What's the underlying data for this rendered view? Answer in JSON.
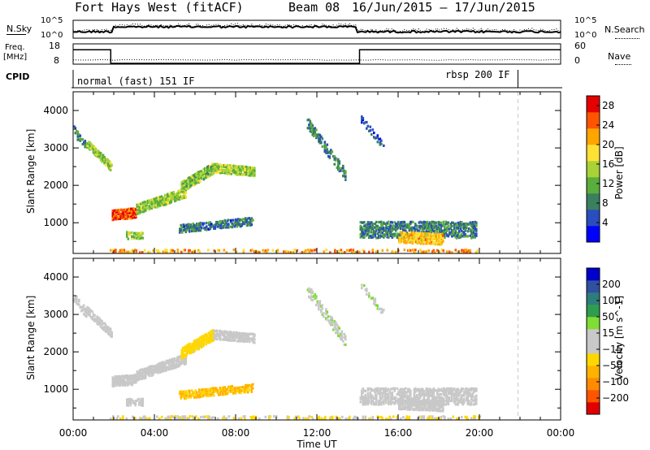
{
  "header": {
    "station": "Fort Hays West (fitACF)",
    "beam": "Beam 08",
    "date_range": "16/Jun/2015 – 17/Jun/2015"
  },
  "noise_panel": {
    "left_label": "N.Sky",
    "left_ticks": [
      "10^5",
      "10^0"
    ],
    "right_label": "N.Search",
    "right_ticks": [
      "10^5",
      "10^0"
    ]
  },
  "freq_panel": {
    "left_label_line1": "Freq.",
    "left_label_line2": "[MHz]",
    "left_ticks": [
      "18",
      "8"
    ],
    "right_label": "Nave",
    "right_ticks": [
      "60",
      "0"
    ],
    "freq_steps": [
      [
        0,
        16.5
      ],
      [
        1.85,
        8.5
      ],
      [
        14.1,
        16.5
      ],
      [
        24,
        16.5
      ]
    ],
    "nave_level": 15
  },
  "cpid": {
    "label": "CPID",
    "modes": [
      {
        "name": "normal (fast) 151 IF",
        "start_hour": 0,
        "end_hour": 21.9
      },
      {
        "name": "rbsp 200 IF",
        "start_hour": 21.9,
        "end_hour": 24
      }
    ]
  },
  "x_axis": {
    "title": "Time UT",
    "ticks": [
      "00:00",
      "04:00",
      "08:00",
      "12:00",
      "16:00",
      "20:00",
      "00:00"
    ]
  },
  "colors": {
    "power_scale": [
      "#0000ff",
      "#2a4dbf",
      "#3a8060",
      "#5aae3c",
      "#a9d236",
      "#ffe034",
      "#ffa500",
      "#ff5500",
      "#e60000"
    ],
    "velocity_scale": [
      "#e00000",
      "#ff5500",
      "#ff8c00",
      "#ffb300",
      "#ffd700",
      "#c8c8c8",
      "#c8c8c8",
      "#80dd33",
      "#2e9e4e",
      "#2e7d7d",
      "#3050a0",
      "#0000cc"
    ],
    "ground_scatter": "#c8c8c8"
  },
  "chart_data": [
    {
      "type": "heatmap",
      "name": "power",
      "ylabel": "Slant Range [km]",
      "xlabel": "",
      "xlim_hours": [
        0,
        24
      ],
      "ylim": [
        180,
        4500
      ],
      "y_ticks": [
        1000,
        2000,
        3000,
        4000
      ],
      "colorbar": {
        "label": "Power [dB]",
        "ticks": [
          4,
          8,
          12,
          16,
          20,
          24,
          28
        ],
        "range": [
          0,
          30
        ]
      },
      "features": [
        {
          "t0": 0.0,
          "t1": 0.65,
          "r0": 3500,
          "r1": 3050,
          "value": 8,
          "width": 250,
          "density": 0.5
        },
        {
          "t0": 0.65,
          "t1": 1.9,
          "r0": 3150,
          "r1": 2500,
          "value": 14,
          "width": 220,
          "density": 0.7
        },
        {
          "t0": 1.9,
          "t1": 3.1,
          "r0": 1250,
          "r1": 1300,
          "value": 26,
          "width": 280,
          "density": 0.9
        },
        {
          "t0": 3.1,
          "t1": 5.5,
          "r0": 1400,
          "r1": 1850,
          "value": 14,
          "width": 280,
          "density": 0.8
        },
        {
          "t0": 5.3,
          "t1": 6.9,
          "r0": 2000,
          "r1": 2500,
          "value": 13,
          "width": 300,
          "density": 0.8
        },
        {
          "t0": 6.9,
          "t1": 8.9,
          "r0": 2500,
          "r1": 2400,
          "value": 14,
          "width": 250,
          "density": 0.75
        },
        {
          "t0": 2.6,
          "t1": 3.4,
          "r0": 700,
          "r1": 700,
          "value": 14,
          "width": 200,
          "density": 0.6
        },
        {
          "t0": 5.2,
          "t1": 8.8,
          "r0": 880,
          "r1": 1080,
          "value": 7,
          "width": 220,
          "density": 0.6
        },
        {
          "t0": 11.5,
          "t1": 13.4,
          "r0": 3700,
          "r1": 2300,
          "value": 9,
          "width": 300,
          "density": 0.45
        },
        {
          "t0": 14.1,
          "t1": 15.3,
          "r0": 3850,
          "r1": 3050,
          "value": 6,
          "width": 200,
          "density": 0.35
        },
        {
          "t0": 14.1,
          "t1": 19.8,
          "r0": 850,
          "r1": 850,
          "value": 8,
          "width": 450,
          "density": 0.55
        },
        {
          "t0": 16.0,
          "t1": 18.2,
          "r0": 650,
          "r1": 600,
          "value": 20,
          "width": 300,
          "density": 0.7
        },
        {
          "t0": 1.8,
          "t1": 20.0,
          "r0": 260,
          "r1": 260,
          "value": 22,
          "width": 140,
          "density": 0.28
        }
      ]
    },
    {
      "type": "heatmap",
      "name": "velocity",
      "ylabel": "Slant Range [km]",
      "xlabel": "Time UT",
      "xlim_hours": [
        0,
        24
      ],
      "ylim": [
        180,
        4500
      ],
      "y_ticks": [
        1000,
        2000,
        3000,
        4000
      ],
      "colorbar": {
        "label": "Velocity [m s^-1]",
        "ticks": [
          200,
          100,
          50,
          15,
          -15,
          -50,
          -100,
          -200
        ],
        "range": [
          -250,
          250
        ]
      },
      "features": [
        {
          "t0": 0.0,
          "t1": 0.65,
          "r0": 3500,
          "r1": 3050,
          "value": 0,
          "width": 250,
          "density": 0.5
        },
        {
          "t0": 0.65,
          "t1": 1.9,
          "r0": 3150,
          "r1": 2500,
          "value": 0,
          "width": 220,
          "density": 0.7
        },
        {
          "t0": 1.9,
          "t1": 3.1,
          "r0": 1250,
          "r1": 1300,
          "value": 0,
          "width": 280,
          "density": 0.85
        },
        {
          "t0": 3.1,
          "t1": 5.5,
          "r0": 1400,
          "r1": 1850,
          "value": 0,
          "width": 280,
          "density": 0.8
        },
        {
          "t0": 5.3,
          "t1": 6.9,
          "r0": 2000,
          "r1": 2500,
          "value": -60,
          "width": 300,
          "density": 0.8
        },
        {
          "t0": 6.9,
          "t1": 8.9,
          "r0": 2500,
          "r1": 2400,
          "value": 0,
          "width": 250,
          "density": 0.75
        },
        {
          "t0": 2.6,
          "t1": 3.4,
          "r0": 700,
          "r1": 700,
          "value": 0,
          "width": 200,
          "density": 0.6
        },
        {
          "t0": 5.2,
          "t1": 8.8,
          "r0": 880,
          "r1": 1080,
          "value": -90,
          "width": 220,
          "density": 0.6
        },
        {
          "t0": 11.5,
          "t1": 13.4,
          "r0": 3700,
          "r1": 2300,
          "value": 30,
          "width": 300,
          "density": 0.45
        },
        {
          "t0": 14.1,
          "t1": 15.3,
          "r0": 3850,
          "r1": 3050,
          "value": 30,
          "width": 200,
          "density": 0.35
        },
        {
          "t0": 14.1,
          "t1": 19.8,
          "r0": 850,
          "r1": 850,
          "value": 0,
          "width": 450,
          "density": 0.55
        },
        {
          "t0": 16.0,
          "t1": 18.2,
          "r0": 650,
          "r1": 600,
          "value": 0,
          "width": 300,
          "density": 0.7
        },
        {
          "t0": 1.8,
          "t1": 20.0,
          "r0": 260,
          "r1": 260,
          "value": -40,
          "width": 140,
          "density": 0.28
        }
      ]
    }
  ]
}
